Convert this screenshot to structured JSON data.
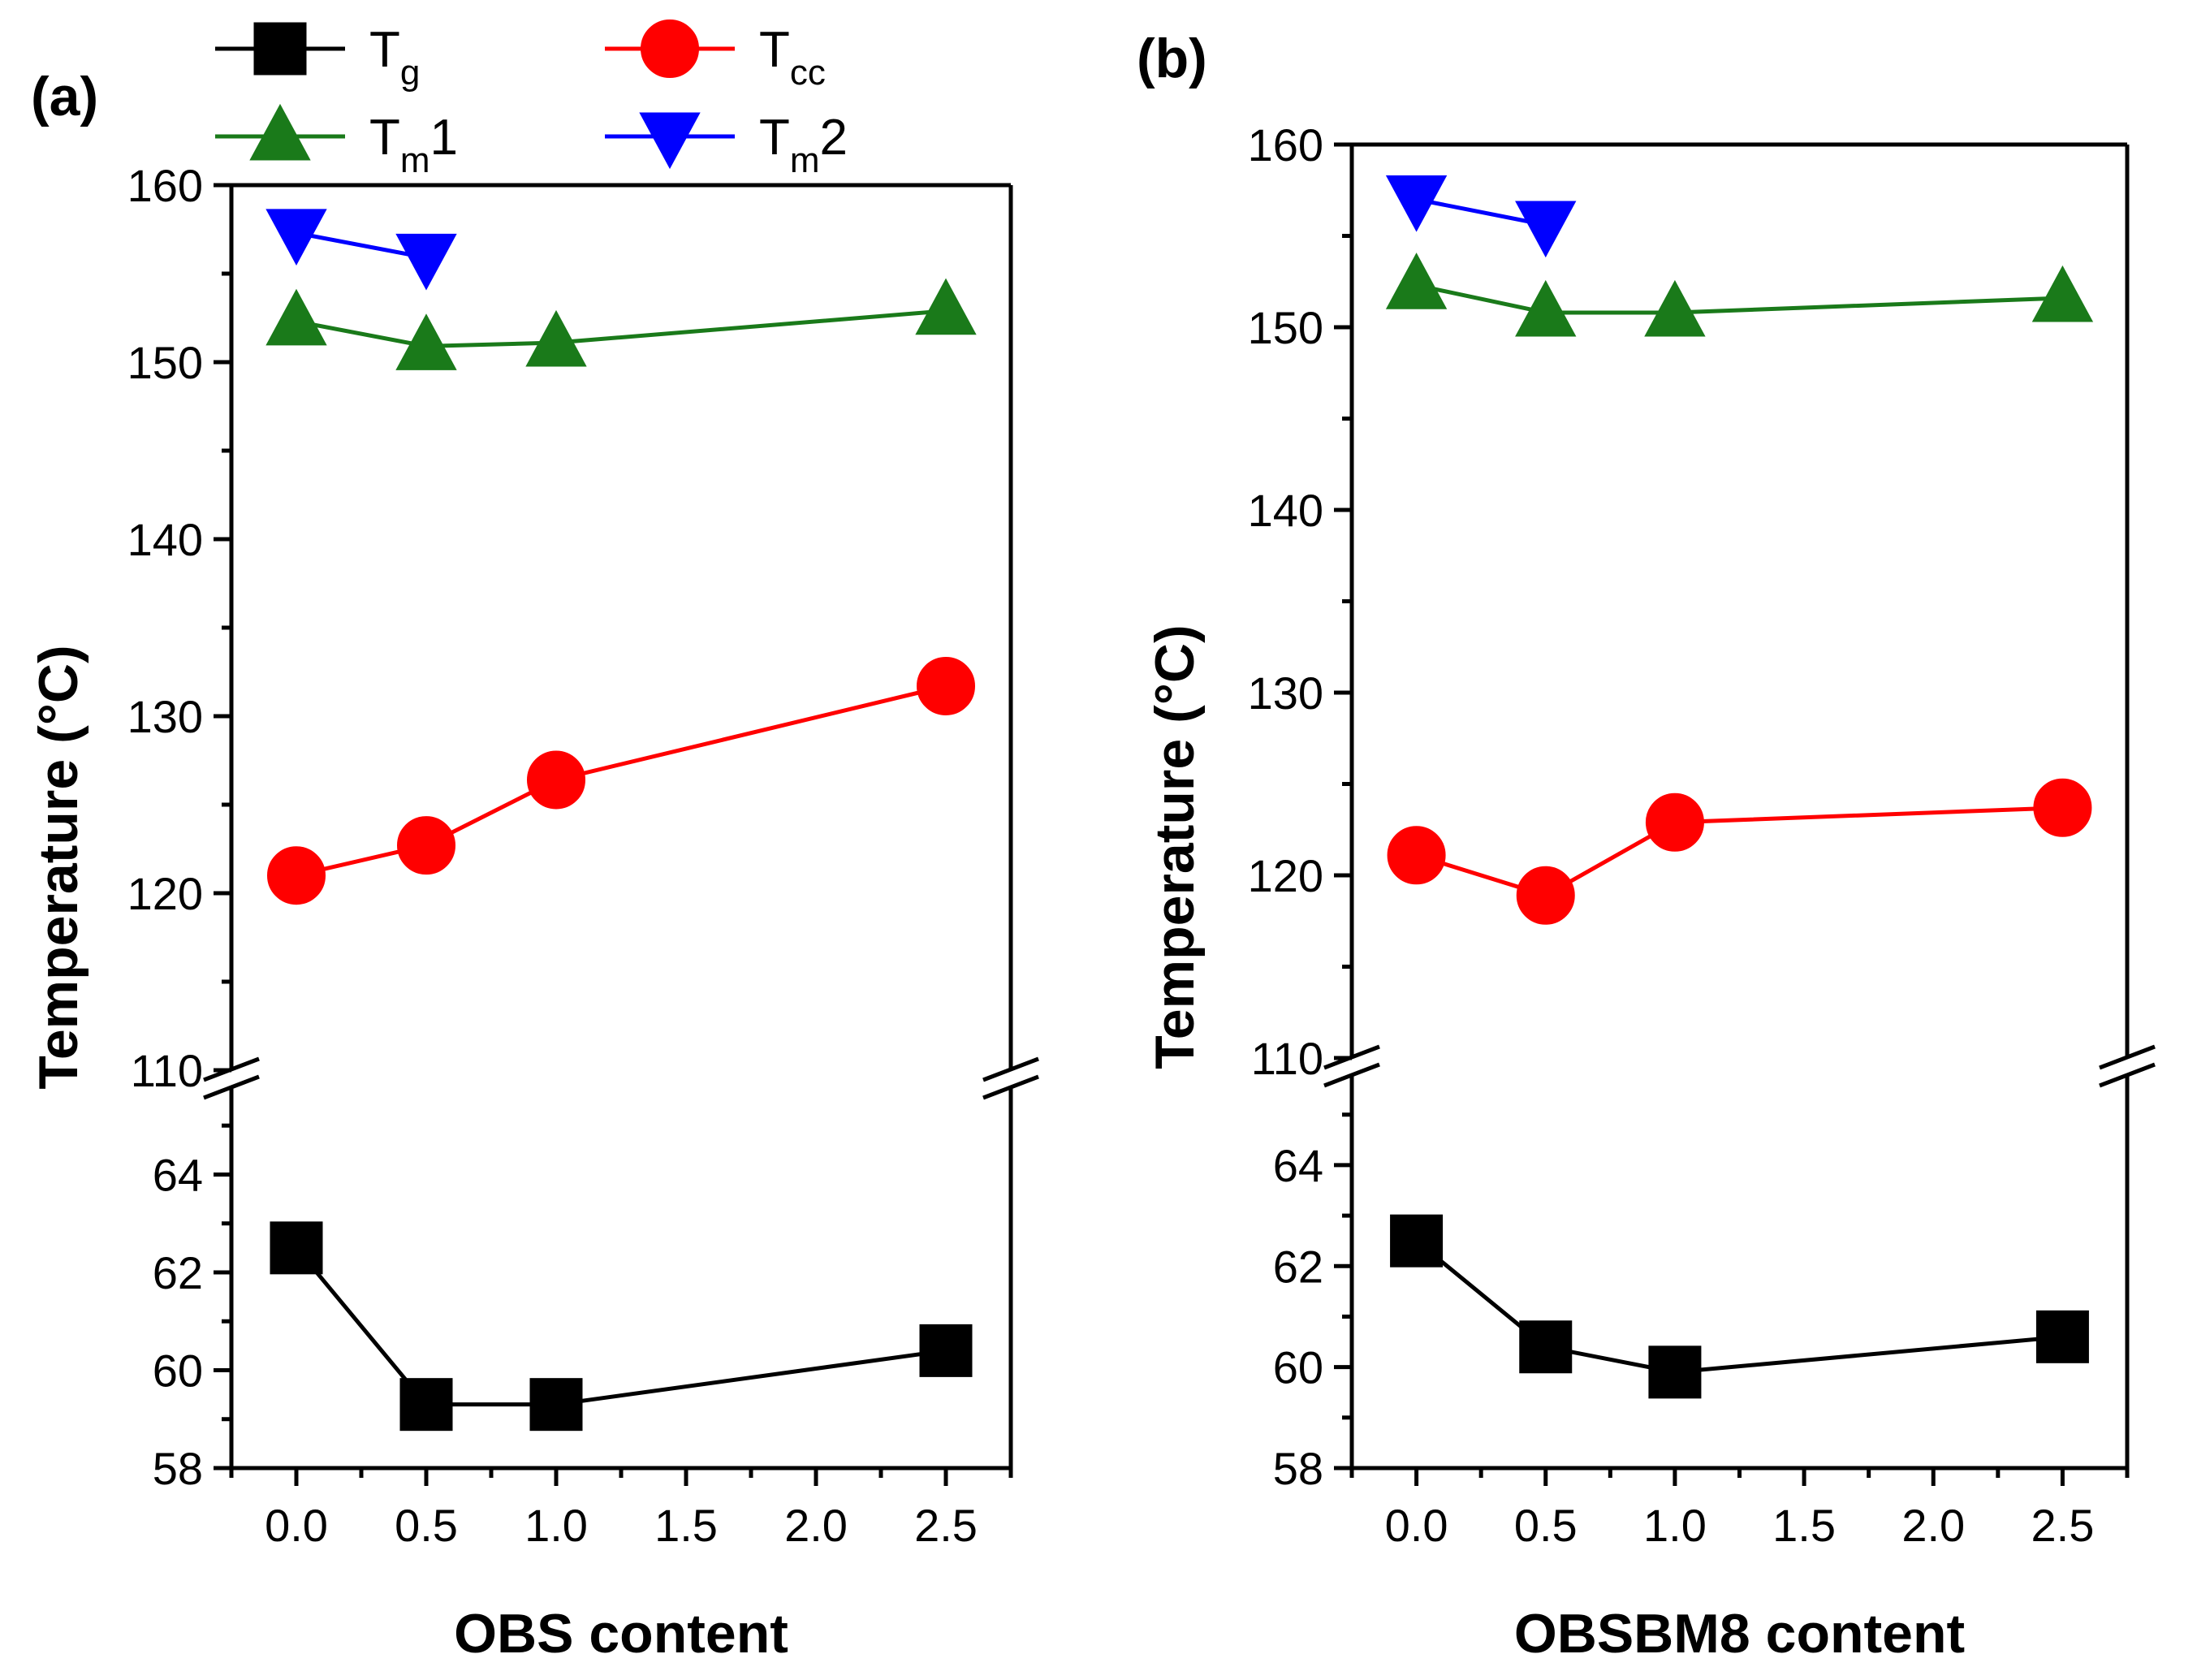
{
  "chart_data": [
    {
      "type": "line",
      "panel_label": "(a)",
      "xlabel": "OBS content",
      "ylabel": "Temperature (°C)",
      "xlim": [
        -0.25,
        2.75
      ],
      "x_ticks": [
        "0.0",
        "0.5",
        "1.0",
        "1.5",
        "2.0",
        "2.5"
      ],
      "upper_ylim": [
        110,
        160
      ],
      "upper_y_ticks": [
        "110",
        "120",
        "130",
        "140",
        "150",
        "160"
      ],
      "lower_ylim": [
        58,
        65.8
      ],
      "lower_y_ticks": [
        "58",
        "60",
        "62",
        "64"
      ],
      "axis_break": true,
      "series": [
        {
          "name": "T_g",
          "color": "#000000",
          "marker": "square",
          "segment": "lower",
          "x": [
            0,
            0.5,
            1.0,
            2.5
          ],
          "values": [
            62.5,
            59.3,
            59.3,
            60.4
          ]
        },
        {
          "name": "T_cc",
          "color": "#ff0000",
          "marker": "circle",
          "segment": "upper",
          "x": [
            0,
            0.5,
            1.0,
            2.5
          ],
          "values": [
            121.0,
            122.7,
            126.4,
            131.7
          ]
        },
        {
          "name": "T_m1",
          "color": "#1a7a1a",
          "marker": "triangle-up",
          "segment": "upper",
          "x": [
            0,
            0.5,
            1.0,
            2.5
          ],
          "values": [
            152.3,
            150.9,
            151.1,
            152.9
          ]
        },
        {
          "name": "T_m2",
          "color": "#0000ff",
          "marker": "triangle-down",
          "segment": "upper",
          "x": [
            0,
            0.5
          ],
          "values": [
            157.3,
            155.9
          ]
        }
      ]
    },
    {
      "type": "line",
      "panel_label": "(b)",
      "xlabel": "OBSBM8 content",
      "ylabel": "Temperature (°C)",
      "xlim": [
        -0.25,
        2.75
      ],
      "x_ticks": [
        "0.0",
        "0.5",
        "1.0",
        "1.5",
        "2.0",
        "2.5"
      ],
      "upper_ylim": [
        110,
        160
      ],
      "upper_y_ticks": [
        "110",
        "120",
        "130",
        "140",
        "150",
        "160"
      ],
      "lower_ylim": [
        58,
        65.8
      ],
      "lower_y_ticks": [
        "58",
        "60",
        "62",
        "64"
      ],
      "axis_break": true,
      "series": [
        {
          "name": "T_g",
          "color": "#000000",
          "marker": "square",
          "segment": "lower",
          "x": [
            0,
            0.5,
            1.0,
            2.5
          ],
          "values": [
            62.5,
            60.4,
            59.9,
            60.6
          ]
        },
        {
          "name": "T_cc",
          "color": "#ff0000",
          "marker": "circle",
          "segment": "upper",
          "x": [
            0,
            0.5,
            1.0,
            2.5
          ],
          "values": [
            121.1,
            118.9,
            122.9,
            123.7
          ]
        },
        {
          "name": "T_m1",
          "color": "#1a7a1a",
          "marker": "triangle-up",
          "segment": "upper",
          "x": [
            0,
            0.5,
            1.0,
            2.5
          ],
          "values": [
            152.3,
            150.8,
            150.8,
            151.6
          ]
        },
        {
          "name": "T_m2",
          "color": "#0000ff",
          "marker": "triangle-down",
          "segment": "upper",
          "x": [
            0,
            0.5
          ],
          "values": [
            157.0,
            155.6
          ]
        }
      ]
    }
  ],
  "legend": {
    "placement": "top-left",
    "items": [
      {
        "base": "T",
        "sub": "g",
        "suffix": "",
        "color": "#000000",
        "marker": "square"
      },
      {
        "base": "T",
        "sub": "cc",
        "suffix": "",
        "color": "#ff0000",
        "marker": "circle"
      },
      {
        "base": "T",
        "sub": "m",
        "suffix": "1",
        "color": "#1a7a1a",
        "marker": "triangle-up"
      },
      {
        "base": "T",
        "sub": "m",
        "suffix": "2",
        "color": "#0000ff",
        "marker": "triangle-down"
      }
    ]
  }
}
